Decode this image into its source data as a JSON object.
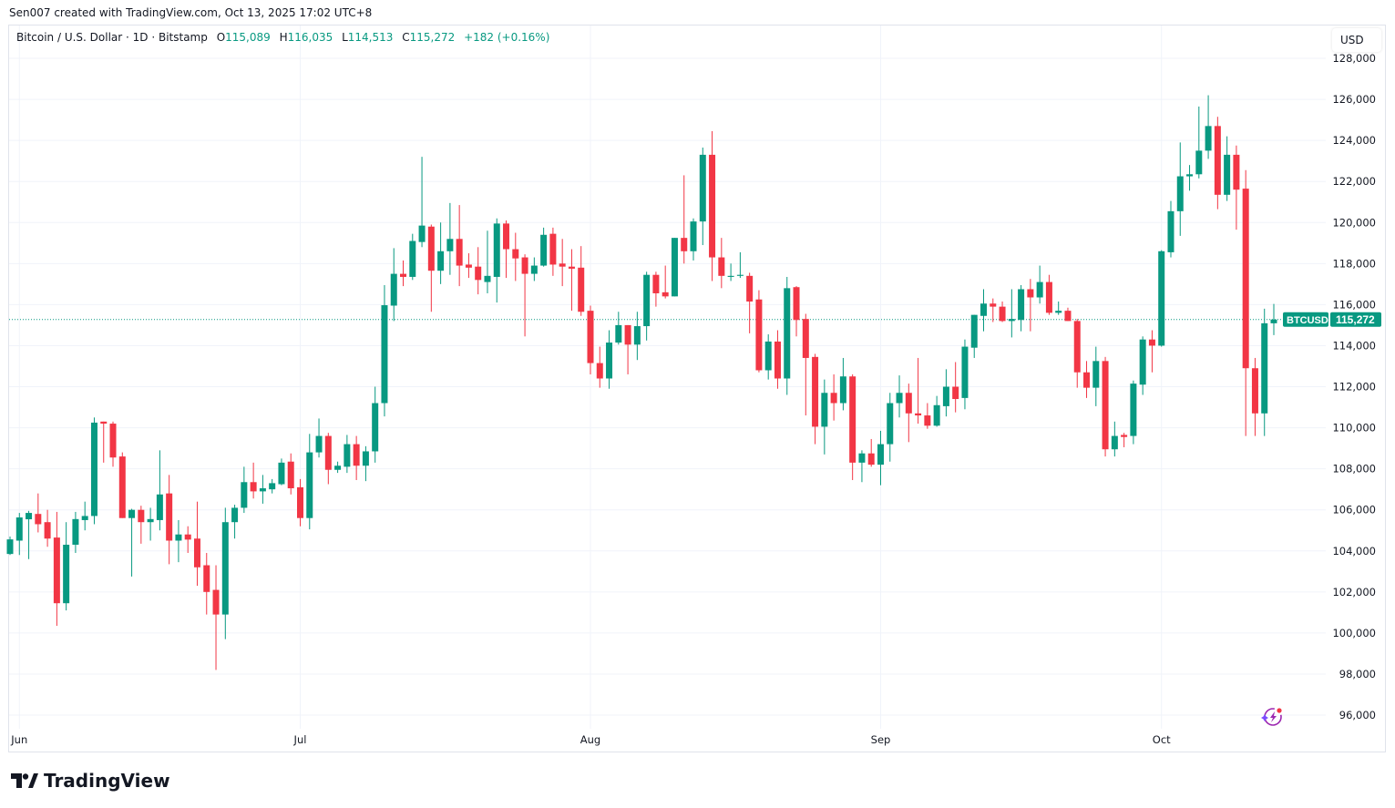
{
  "credit": "Sen007 created with TradingView.com, Oct 13, 2025 17:02 UTC+8",
  "legend": {
    "symbol": "Bitcoin / U.S. Dollar · 1D · Bitstamp",
    "o_label": "O",
    "o": "115,089",
    "h_label": "H",
    "h": "116,035",
    "l_label": "L",
    "l": "114,513",
    "c_label": "C",
    "c": "115,272",
    "change": "+182 (+0.16%)"
  },
  "currency_button": "USD",
  "price_tag": {
    "symbol": "BTCUSD",
    "price": "115,272",
    "value": 115272
  },
  "footer_logo": "TradingView",
  "icons": {
    "assistant": "lightning-sparkle-icon",
    "logo": "tradingview-logo-icon"
  },
  "colors": {
    "up": "#089981",
    "down": "#f23645",
    "grid": "#f0f3fa",
    "text": "#131722"
  },
  "chart_data": {
    "type": "candlestick",
    "title": "",
    "xlabel": "",
    "ylabel": "",
    "ylim": [
      96000,
      128000
    ],
    "yticks": [
      128000,
      126000,
      124000,
      122000,
      120000,
      118000,
      116000,
      114000,
      112000,
      110000,
      108000,
      106000,
      104000,
      102000,
      100000,
      98000,
      96000
    ],
    "ytick_labels": [
      "128,000",
      "126,000",
      "124,000",
      "122,000",
      "120,000",
      "118,000",
      "116,000",
      "114,000",
      "112,000",
      "110,000",
      "108,000",
      "106,000",
      "104,000",
      "102,000",
      "100,000",
      "98,000",
      "96,000"
    ],
    "xticks": [
      {
        "date": "2025-06-01",
        "label": "Jun"
      },
      {
        "date": "2025-07-01",
        "label": "Jul"
      },
      {
        "date": "2025-08-01",
        "label": "Aug"
      },
      {
        "date": "2025-09-01",
        "label": "Sep"
      },
      {
        "date": "2025-10-01",
        "label": "Oct"
      }
    ],
    "grid": true,
    "columns": [
      "date",
      "open",
      "high",
      "low",
      "close"
    ],
    "candles": [
      [
        "2025-05-31",
        103850,
        104700,
        103800,
        104560
      ],
      [
        "2025-06-01",
        104500,
        105850,
        103800,
        105630
      ],
      [
        "2025-06-02",
        105540,
        105950,
        103600,
        105850
      ],
      [
        "2025-06-03",
        105800,
        106800,
        104900,
        105300
      ],
      [
        "2025-06-04",
        105400,
        106000,
        104200,
        104600
      ],
      [
        "2025-06-05",
        104650,
        105900,
        100350,
        101450
      ],
      [
        "2025-06-06",
        101450,
        105400,
        101100,
        104300
      ],
      [
        "2025-06-07",
        104300,
        105900,
        103900,
        105550
      ],
      [
        "2025-06-08",
        105500,
        106400,
        105000,
        105700
      ],
      [
        "2025-06-09",
        105700,
        110500,
        105300,
        110250
      ],
      [
        "2025-06-10",
        110300,
        110300,
        108300,
        110200
      ],
      [
        "2025-06-11",
        110200,
        110300,
        108100,
        108550
      ],
      [
        "2025-06-12",
        108600,
        108800,
        105600,
        105600
      ],
      [
        "2025-06-13",
        105600,
        106050,
        102750,
        106000
      ],
      [
        "2025-06-14",
        106000,
        106200,
        104350,
        105400
      ],
      [
        "2025-06-15",
        105400,
        106100,
        104500,
        105550
      ],
      [
        "2025-06-16",
        105500,
        108900,
        105000,
        106750
      ],
      [
        "2025-06-17",
        106800,
        107700,
        103350,
        104500
      ],
      [
        "2025-06-18",
        104500,
        105500,
        103450,
        104800
      ],
      [
        "2025-06-19",
        104800,
        105200,
        103900,
        104550
      ],
      [
        "2025-06-20",
        104600,
        106400,
        102300,
        103200
      ],
      [
        "2025-06-21",
        103300,
        103900,
        100900,
        102000
      ],
      [
        "2025-06-22",
        102100,
        103300,
        98200,
        100900
      ],
      [
        "2025-06-23",
        100900,
        106100,
        99700,
        105400
      ],
      [
        "2025-06-24",
        105400,
        106250,
        104600,
        106100
      ],
      [
        "2025-06-25",
        106100,
        108100,
        105850,
        107350
      ],
      [
        "2025-06-26",
        107350,
        108300,
        106550,
        106900
      ],
      [
        "2025-06-27",
        106900,
        107700,
        106300,
        107050
      ],
      [
        "2025-06-28",
        107000,
        107500,
        106800,
        107300
      ],
      [
        "2025-06-29",
        107250,
        108500,
        107200,
        108300
      ],
      [
        "2025-06-30",
        108350,
        108750,
        106750,
        107050
      ],
      [
        "2025-07-01",
        107100,
        107500,
        105200,
        105600
      ],
      [
        "2025-07-02",
        105600,
        109700,
        105050,
        108800
      ],
      [
        "2025-07-03",
        108800,
        110450,
        108550,
        109600
      ],
      [
        "2025-07-04",
        109600,
        109750,
        107250,
        107950
      ],
      [
        "2025-07-05",
        107950,
        108350,
        107800,
        108150
      ],
      [
        "2025-07-06",
        108100,
        109650,
        107800,
        109200
      ],
      [
        "2025-07-07",
        109200,
        109600,
        107450,
        108150
      ],
      [
        "2025-07-08",
        108150,
        109100,
        107400,
        108850
      ],
      [
        "2025-07-09",
        108850,
        112000,
        108300,
        111200
      ],
      [
        "2025-07-10",
        111200,
        116950,
        110550,
        115970
      ],
      [
        "2025-07-11",
        115950,
        118750,
        115200,
        117500
      ],
      [
        "2025-07-12",
        117500,
        118150,
        116900,
        117350
      ],
      [
        "2025-07-13",
        117350,
        119450,
        117200,
        119100
      ],
      [
        "2025-07-14",
        119050,
        123200,
        118800,
        119850
      ],
      [
        "2025-07-15",
        119800,
        119900,
        115650,
        117650
      ],
      [
        "2025-07-16",
        117650,
        120000,
        117000,
        118600
      ],
      [
        "2025-07-17",
        118600,
        120950,
        117450,
        119200
      ],
      [
        "2025-07-18",
        119200,
        120850,
        116900,
        117900
      ],
      [
        "2025-07-19",
        117950,
        118500,
        117300,
        117800
      ],
      [
        "2025-07-20",
        117850,
        118800,
        116500,
        117200
      ],
      [
        "2025-07-21",
        117100,
        119600,
        116550,
        117400
      ],
      [
        "2025-07-22",
        117350,
        120200,
        116100,
        119950
      ],
      [
        "2025-07-23",
        119950,
        120100,
        117300,
        118700
      ],
      [
        "2025-07-24",
        118700,
        119500,
        117150,
        118250
      ],
      [
        "2025-07-25",
        118300,
        118450,
        114450,
        117500
      ],
      [
        "2025-07-26",
        117500,
        118300,
        117150,
        117900
      ],
      [
        "2025-07-27",
        117900,
        119750,
        117850,
        119400
      ],
      [
        "2025-07-28",
        119450,
        119750,
        117400,
        117950
      ],
      [
        "2025-07-29",
        118000,
        119200,
        116900,
        117850
      ],
      [
        "2025-07-30",
        117850,
        118700,
        115700,
        117750
      ],
      [
        "2025-07-31",
        117800,
        118850,
        115450,
        115650
      ],
      [
        "2025-08-01",
        115700,
        115950,
        112600,
        113150
      ],
      [
        "2025-08-02",
        113150,
        113950,
        111950,
        112400
      ],
      [
        "2025-08-03",
        112400,
        114750,
        111900,
        114150
      ],
      [
        "2025-08-04",
        114150,
        115650,
        114050,
        115000
      ],
      [
        "2025-08-05",
        115000,
        115000,
        112600,
        114050
      ],
      [
        "2025-08-06",
        114050,
        115650,
        113300,
        114950
      ],
      [
        "2025-08-07",
        114950,
        117600,
        114250,
        117450
      ],
      [
        "2025-08-08",
        117450,
        117600,
        115900,
        116550
      ],
      [
        "2025-08-09",
        116600,
        117900,
        116300,
        116400
      ],
      [
        "2025-08-10",
        116400,
        119250,
        116400,
        119250
      ],
      [
        "2025-08-11",
        119250,
        122300,
        118000,
        118600
      ],
      [
        "2025-08-12",
        118600,
        120200,
        118150,
        120050
      ],
      [
        "2025-08-13",
        120050,
        123650,
        118900,
        123300
      ],
      [
        "2025-08-14",
        123300,
        124450,
        117150,
        118300
      ],
      [
        "2025-08-15",
        118300,
        119250,
        116800,
        117400
      ],
      [
        "2025-08-16",
        117350,
        118000,
        117150,
        117400
      ],
      [
        "2025-08-17",
        117400,
        118550,
        117300,
        117450
      ],
      [
        "2025-08-18",
        117400,
        117550,
        114600,
        116150
      ],
      [
        "2025-08-19",
        116250,
        116700,
        112700,
        112800
      ],
      [
        "2025-08-20",
        112800,
        114550,
        112350,
        114200
      ],
      [
        "2025-08-21",
        114200,
        114750,
        111900,
        112400
      ],
      [
        "2025-08-22",
        112400,
        117350,
        111600,
        116800
      ],
      [
        "2025-08-23",
        116850,
        116900,
        114450,
        115250
      ],
      [
        "2025-08-24",
        115300,
        115550,
        110600,
        113400
      ],
      [
        "2025-08-25",
        113450,
        113600,
        109200,
        110050
      ],
      [
        "2025-08-26",
        110050,
        112350,
        108700,
        111700
      ],
      [
        "2025-08-27",
        111700,
        112600,
        110350,
        111200
      ],
      [
        "2025-08-28",
        111200,
        113400,
        110850,
        112500
      ],
      [
        "2025-08-29",
        112500,
        112600,
        107450,
        108300
      ],
      [
        "2025-08-30",
        108300,
        108900,
        107350,
        108750
      ],
      [
        "2025-08-31",
        108750,
        109450,
        108100,
        108200
      ],
      [
        "2025-09-01",
        108200,
        109850,
        107200,
        109200
      ],
      [
        "2025-09-02",
        109200,
        111700,
        108350,
        111200
      ],
      [
        "2025-09-03",
        111200,
        112550,
        110500,
        111700
      ],
      [
        "2025-09-04",
        111700,
        112150,
        109300,
        110700
      ],
      [
        "2025-09-05",
        110700,
        113400,
        110200,
        110600
      ],
      [
        "2025-09-06",
        110600,
        111200,
        109950,
        110100
      ],
      [
        "2025-09-07",
        110100,
        111550,
        110050,
        111100
      ],
      [
        "2025-09-08",
        111050,
        112850,
        110550,
        112000
      ],
      [
        "2025-09-09",
        112000,
        113200,
        110750,
        111400
      ],
      [
        "2025-09-10",
        111450,
        114300,
        110900,
        113950
      ],
      [
        "2025-09-11",
        113900,
        115500,
        113400,
        115500
      ],
      [
        "2025-09-12",
        115450,
        116750,
        114700,
        116050
      ],
      [
        "2025-09-13",
        116050,
        116300,
        115150,
        115900
      ],
      [
        "2025-09-14",
        115900,
        116150,
        115150,
        115200
      ],
      [
        "2025-09-15",
        115200,
        116750,
        114400,
        115300
      ],
      [
        "2025-09-16",
        115250,
        116950,
        114700,
        116750
      ],
      [
        "2025-09-17",
        116750,
        117250,
        114700,
        116350
      ],
      [
        "2025-09-18",
        116350,
        117900,
        116050,
        117100
      ],
      [
        "2025-09-19",
        117100,
        117450,
        115500,
        115600
      ],
      [
        "2025-09-20",
        115600,
        116150,
        115500,
        115700
      ],
      [
        "2025-09-21",
        115700,
        115850,
        115200,
        115200
      ],
      [
        "2025-09-22",
        115200,
        115300,
        111950,
        112700
      ],
      [
        "2025-09-23",
        112700,
        113250,
        111450,
        111950
      ],
      [
        "2025-09-24",
        111950,
        113950,
        111050,
        113250
      ],
      [
        "2025-09-25",
        113250,
        113450,
        108600,
        108950
      ],
      [
        "2025-09-26",
        108950,
        110300,
        108600,
        109600
      ],
      [
        "2025-09-27",
        109650,
        109750,
        109050,
        109550
      ],
      [
        "2025-09-28",
        109600,
        112300,
        109200,
        112150
      ],
      [
        "2025-09-29",
        112100,
        114450,
        111600,
        114300
      ],
      [
        "2025-09-30",
        114300,
        114750,
        112700,
        114000
      ],
      [
        "2025-10-01",
        114000,
        118650,
        113950,
        118600
      ],
      [
        "2025-10-02",
        118550,
        121050,
        118300,
        120550
      ],
      [
        "2025-10-03",
        120550,
        123900,
        119350,
        122250
      ],
      [
        "2025-10-04",
        122250,
        122800,
        121550,
        122350
      ],
      [
        "2025-10-05",
        122350,
        125650,
        122150,
        123500
      ],
      [
        "2025-10-06",
        123500,
        126200,
        123100,
        124700
      ],
      [
        "2025-10-07",
        124700,
        125150,
        120650,
        121350
      ],
      [
        "2025-10-08",
        121350,
        124200,
        121050,
        123300
      ],
      [
        "2025-10-09",
        123300,
        123750,
        119650,
        121600
      ],
      [
        "2025-10-10",
        121650,
        122550,
        109600,
        112900
      ],
      [
        "2025-10-11",
        112900,
        113400,
        109600,
        110700
      ],
      [
        "2025-10-12",
        110700,
        115800,
        109600,
        115090
      ],
      [
        "2025-10-13",
        115089,
        116035,
        114513,
        115272
      ]
    ]
  }
}
